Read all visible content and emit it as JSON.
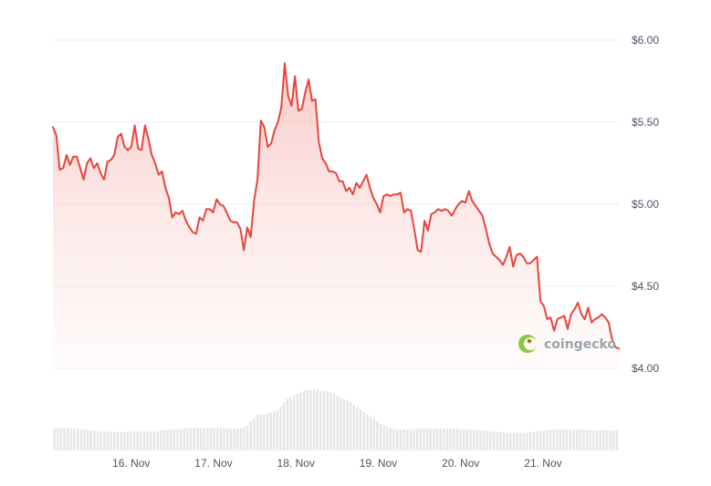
{
  "chart_data": {
    "type": "area",
    "ylim": [
      4.0,
      6.0
    ],
    "y_ticks": [
      "$6.00",
      "$5.50",
      "$5.00",
      "$4.50",
      "$4.00"
    ],
    "y_tick_values": [
      6.0,
      5.5,
      5.0,
      4.5,
      4.0
    ],
    "x_ticks": [
      "16. Nov",
      "17. Nov",
      "18. Nov",
      "19. Nov",
      "20. Nov",
      "21. Nov"
    ],
    "x_range_days": [
      15.05,
      21.92
    ],
    "grid": true,
    "legend": "none",
    "colors": {
      "line": "#e5463d",
      "fill_top": "#f5b8b4",
      "volume": "#e6e6e6",
      "grid": "#ececec"
    },
    "series": [
      {
        "values": [
          5.47,
          5.42,
          5.21,
          5.22,
          5.3,
          5.24,
          5.29,
          5.29,
          5.22,
          5.15,
          5.25,
          5.28,
          5.22,
          5.25,
          5.19,
          5.15,
          5.26,
          5.27,
          5.3,
          5.41,
          5.43,
          5.35,
          5.33,
          5.35,
          5.48,
          5.34,
          5.33,
          5.48,
          5.4,
          5.3,
          5.25,
          5.18,
          5.2,
          5.1,
          5.04,
          4.92,
          4.95,
          4.94,
          4.96,
          4.9,
          4.86,
          4.83,
          4.82,
          4.92,
          4.9,
          4.97,
          4.97,
          4.95,
          5.03,
          5.0,
          4.99,
          4.95,
          4.9,
          4.89,
          4.89,
          4.85,
          4.72,
          4.86,
          4.8,
          5.02,
          5.15,
          5.51,
          5.47,
          5.35,
          5.37,
          5.45,
          5.5,
          5.59,
          5.86,
          5.66,
          5.6,
          5.78,
          5.57,
          5.58,
          5.68,
          5.76,
          5.63,
          5.64,
          5.38,
          5.28,
          5.25,
          5.2,
          5.2,
          5.19,
          5.14,
          5.14,
          5.08,
          5.1,
          5.06,
          5.13,
          5.1,
          5.14,
          5.18,
          5.1,
          5.04,
          5.0,
          4.95,
          5.05,
          5.06,
          5.05,
          5.06,
          5.06,
          5.07,
          4.95,
          4.97,
          4.96,
          4.85,
          4.72,
          4.71,
          4.9,
          4.84,
          4.94,
          4.95,
          4.97,
          4.96,
          4.97,
          4.96,
          4.93,
          4.97,
          5.0,
          5.02,
          5.01,
          5.08,
          5.02,
          4.99,
          4.96,
          4.93,
          4.85,
          4.76,
          4.7,
          4.68,
          4.66,
          4.63,
          4.68,
          4.74,
          4.62,
          4.69,
          4.7,
          4.68,
          4.64,
          4.64,
          4.66,
          4.68,
          4.41,
          4.38,
          4.3,
          4.31,
          4.23,
          4.3,
          4.31,
          4.32,
          4.24,
          4.33,
          4.36,
          4.4,
          4.33,
          4.3,
          4.37,
          4.28,
          4.3,
          4.31,
          4.33,
          4.31,
          4.28,
          4.18,
          4.13,
          4.12
        ]
      }
    ],
    "volume": [
      0.28,
      0.28,
      0.28,
      0.28,
      0.28,
      0.27,
      0.27,
      0.27,
      0.26,
      0.26,
      0.25,
      0.25,
      0.25,
      0.24,
      0.24,
      0.24,
      0.23,
      0.23,
      0.23,
      0.23,
      0.23,
      0.23,
      0.23,
      0.24,
      0.24,
      0.24,
      0.24,
      0.24,
      0.24,
      0.24,
      0.24,
      0.24,
      0.25,
      0.25,
      0.25,
      0.26,
      0.26,
      0.26,
      0.27,
      0.27,
      0.27,
      0.28,
      0.28,
      0.28,
      0.28,
      0.28,
      0.28,
      0.28,
      0.28,
      0.28,
      0.28,
      0.27,
      0.27,
      0.27,
      0.27,
      0.27,
      0.28,
      0.29,
      0.31,
      0.36,
      0.4,
      0.44,
      0.45,
      0.45,
      0.46,
      0.47,
      0.48,
      0.5,
      0.54,
      0.6,
      0.64,
      0.66,
      0.68,
      0.7,
      0.72,
      0.74,
      0.75,
      0.75,
      0.76,
      0.75,
      0.74,
      0.74,
      0.73,
      0.72,
      0.7,
      0.68,
      0.66,
      0.64,
      0.62,
      0.6,
      0.57,
      0.54,
      0.51,
      0.48,
      0.45,
      0.42,
      0.39,
      0.36,
      0.33,
      0.31,
      0.29,
      0.28,
      0.27,
      0.26,
      0.26,
      0.26,
      0.26,
      0.26,
      0.26,
      0.27,
      0.27,
      0.27,
      0.27,
      0.27,
      0.27,
      0.27,
      0.27,
      0.27,
      0.27,
      0.27,
      0.27,
      0.27,
      0.26,
      0.26,
      0.26,
      0.26,
      0.26,
      0.25,
      0.25,
      0.25,
      0.24,
      0.24,
      0.23,
      0.23,
      0.23,
      0.22,
      0.22,
      0.22,
      0.22,
      0.22,
      0.22,
      0.22,
      0.23,
      0.23,
      0.23,
      0.24,
      0.24,
      0.25,
      0.25,
      0.26,
      0.26,
      0.26,
      0.26,
      0.26,
      0.26,
      0.26,
      0.26,
      0.26,
      0.26,
      0.26,
      0.25,
      0.25,
      0.25,
      0.25,
      0.25,
      0.25,
      0.25,
      0.25,
      0.25,
      0.25
    ]
  },
  "watermark": {
    "text": "coingecko",
    "icon": "gecko-logo-icon"
  }
}
